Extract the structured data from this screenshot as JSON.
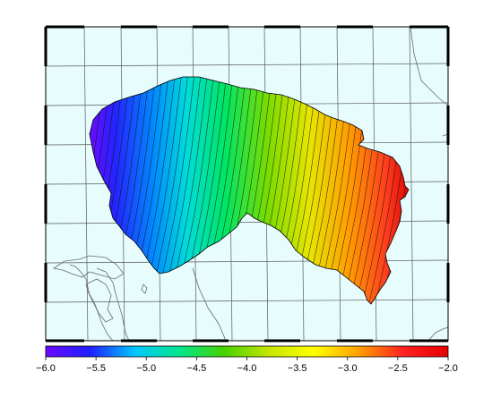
{
  "map": {
    "background_color": "#e6fcfd",
    "grid_color": "#5a5a5a",
    "coast_color": "#6b6b6b",
    "contour_color": "#111111",
    "frame": "alternating black/white border ticks",
    "field": "gradient surface, low (violet) in the west to high (red) in the east, with dense contour lines"
  },
  "colorbar": {
    "min": -6.0,
    "max": -2.0,
    "colors": [
      "#6a0aff",
      "#1f1fff",
      "#00c8ff",
      "#00e68c",
      "#46d200",
      "#c8e600",
      "#ffff00",
      "#ffa000",
      "#ff2020",
      "#e60000"
    ],
    "tick_labels": [
      "−6.0",
      "−5.5",
      "−5.0",
      "−4.5",
      "−4.0",
      "−3.5",
      "−3.0",
      "−2.5",
      "−2.0"
    ]
  }
}
